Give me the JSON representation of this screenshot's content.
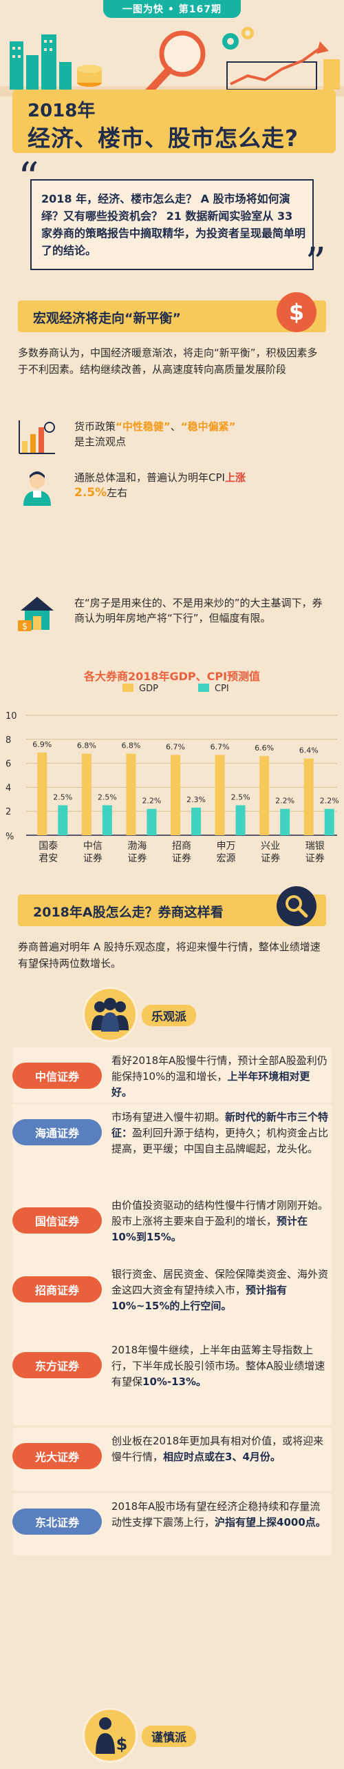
{
  "header": {
    "issue": "一图为快 • 第167期",
    "title_line1": "2018年",
    "title_line2": "经济、楼市、股市怎么走?"
  },
  "intro": {
    "text": "2018 年，经济、楼市怎么走？ A 股市场将如何演绎？又有哪些投资机会？ 21 数据新闻实验室从 33 家券商的策略报告中摘取精华，为投资者呈现最简单明了的结论。"
  },
  "macro": {
    "banner": "宏观经济将走向“新平衡”",
    "badge_icon": "dollar-icon",
    "paragraph": "多数券商认为，中国经济暖意渐浓，将走向“新平衡”，积极因素多于不利因素。结构继续改善，从高速度转向高质量发展阶段",
    "points": [
      {
        "icon": "bar-chart-icon",
        "pre": "货币政策",
        "hl1": "“中性稳健”",
        "mid": "、",
        "hl2": "“稳中偏紧”",
        "post": "是主流观点"
      },
      {
        "icon": "person-icon",
        "pre": "通胀总体温和，普遍认为明年CPI",
        "hl1": "上涨",
        "hl2": "2.5%",
        "post": "左右"
      },
      {
        "icon": "house-icon",
        "text": "在“房子是用来住的、不是用来炒的”的大主基调下，券商认为明年房地产将“下行”，但幅度有限。"
      }
    ]
  },
  "chart_data": {
    "type": "bar",
    "title": "各大券商2018年GDP、CPI预测值",
    "categories": [
      "国泰\n君安",
      "中信\n证券",
      "渤海\n证券",
      "招商\n证券",
      "申万\n宏源",
      "兴业\n证券",
      "瑞银\n证券"
    ],
    "series": [
      {
        "name": "GDP",
        "values": [
          6.9,
          6.8,
          6.8,
          6.7,
          6.7,
          6.6,
          6.4
        ],
        "labels": [
          "6.9%",
          "6.8%",
          "6.8%",
          "6.7%",
          "6.7%",
          "6.6%",
          "6.4%"
        ],
        "color": "#f6c95a"
      },
      {
        "name": "CPI",
        "values": [
          2.5,
          2.5,
          2.2,
          2.3,
          2.5,
          2.2,
          2.2
        ],
        "labels": [
          "2.5%",
          "2.5%",
          "2.2%",
          "2.3%",
          "2.5%",
          "2.2%",
          "2.2%"
        ],
        "color": "#3fd3c0"
      }
    ],
    "yticks": [
      "10",
      "8",
      "6",
      "4",
      "2",
      "%"
    ],
    "ylim": [
      0,
      10
    ],
    "grid": true,
    "legend": "top"
  },
  "outlook": {
    "banner": "2018年A股怎么走？券商这样看",
    "badge_icon": "magnifier-icon",
    "paragraph": "券商普遍对明年 A 股持乐观态度，将迎来慢牛行情，整体业绩增速有望保持两位数增长。",
    "optimist_label": "乐观派",
    "cautious_label": "谨慎派",
    "brokers": [
      {
        "name": "中信证券",
        "text": "看好2018年A股慢牛行情，预计全部A股盈利仍能保持10%的温和增长，",
        "bold": "上半年环境相对更好。"
      },
      {
        "name": "海通证券",
        "text": "市场有望进入慢牛初期。",
        "bold": "新时代的新牛市三个特征：",
        "tail": "盈利回升源于结构，更持久；机构资金占比提高，更平缓；中国自主品牌崛起，龙头化。"
      },
      {
        "name": "国信证券",
        "text": "由价值投资驱动的结构性慢牛行情才刚刚开始。股市上涨将主要来自于盈利的增长，",
        "bold": "预计在10%到15%。"
      },
      {
        "name": "招商证券",
        "text": "银行资金、居民资金、保险保障类资金、海外资金这四大资金有望持续入市，",
        "bold": "预计指有10%~15%的上行空间。"
      },
      {
        "name": "东方证券",
        "text": "2018年慢牛继续，上半年由蓝筹主导指数上行，下半年成长股引领市场。整体A股业绩增速有望保",
        "bold": "10%-13%。"
      },
      {
        "name": "光大证券",
        "text": "创业板在2018年更加具有相对价值，或将迎来慢牛行情，",
        "bold": "相应时点或在3、4月份。"
      },
      {
        "name": "东北证券",
        "text": "2018年A股市场有望在经济企稳持续和存量流动性支撑下震荡上行，",
        "bold": "沪指有望上探4000点。"
      }
    ]
  },
  "colors": {
    "navy": "#1f2c4c",
    "orange": "#e8613c",
    "yellow": "#f6c95a",
    "teal": "#3fd3c0",
    "blue": "#5a7fbf",
    "background": "#f7e6cf"
  }
}
